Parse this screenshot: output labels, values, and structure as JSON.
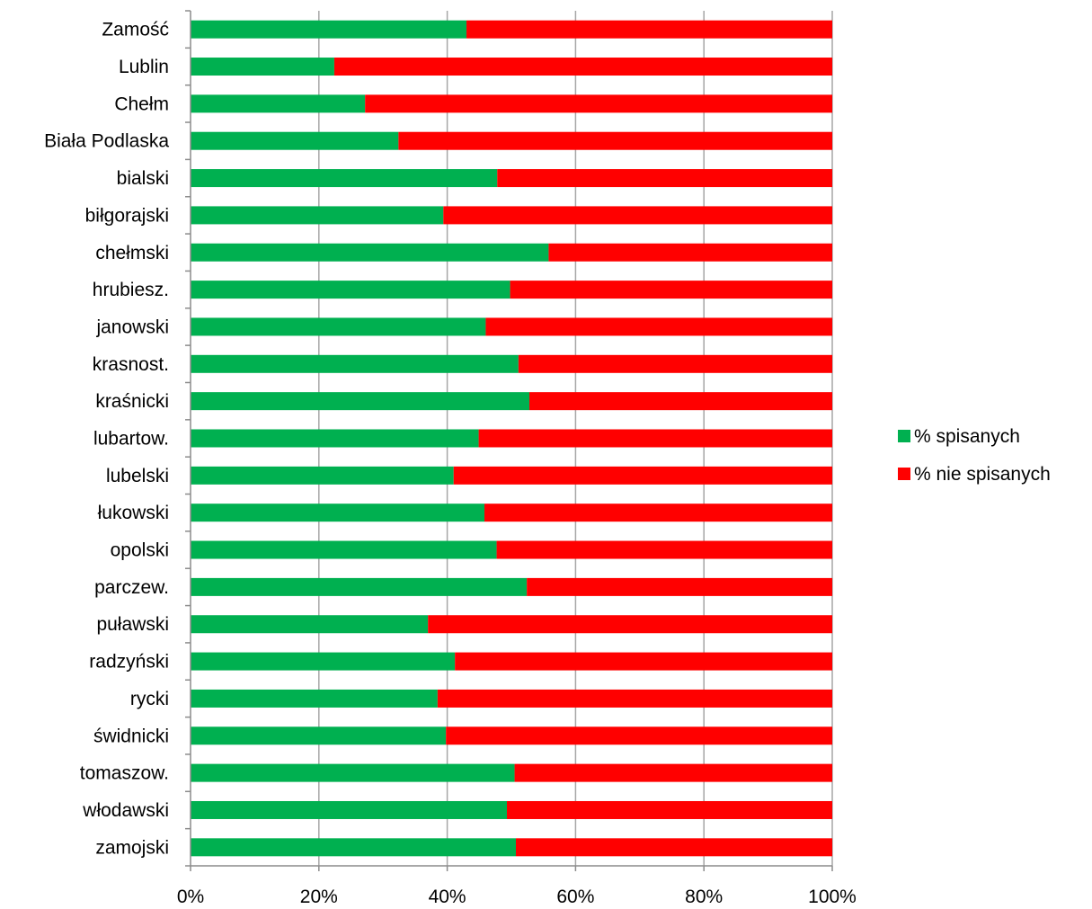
{
  "chart_data": {
    "type": "bar",
    "orientation": "horizontal",
    "stacked": "percent",
    "categories": [
      "Zamość",
      "Lublin",
      "Chełm",
      "Biała Podlaska",
      "bialski",
      "biłgorajski",
      "chełmski",
      "hrubiesz.",
      "janowski",
      "krasnost.",
      "kraśnicki",
      "lubartow.",
      "lubelski",
      "łukowski",
      "opolski",
      "parczew.",
      "puławski",
      "radzyński",
      "rycki",
      "świdnicki",
      "tomaszow.",
      "włodawski",
      "zamojski"
    ],
    "series": [
      {
        "name": "% spisanych",
        "color": "#00b050",
        "values": [
          43,
          22.4,
          27.2,
          32.4,
          47.8,
          39.4,
          55.8,
          49.8,
          46,
          51.1,
          52.8,
          44.9,
          41,
          45.8,
          47.7,
          52.4,
          37,
          41.2,
          38.5,
          39.8,
          50.5,
          49.3,
          50.7
        ]
      },
      {
        "name": "% nie spisanych",
        "color": "#ff0000",
        "values": [
          57,
          77.6,
          72.8,
          67.6,
          52.2,
          60.6,
          44.2,
          50.2,
          54,
          48.9,
          47.2,
          55.1,
          59,
          54.2,
          52.3,
          47.6,
          63,
          58.8,
          61.5,
          60.2,
          49.5,
          50.7,
          49.3
        ]
      }
    ],
    "xlim": [
      0,
      100
    ],
    "xticks": [
      "0%",
      "20%",
      "40%",
      "60%",
      "80%",
      "100%"
    ],
    "xgrid": true,
    "legend": "right"
  }
}
